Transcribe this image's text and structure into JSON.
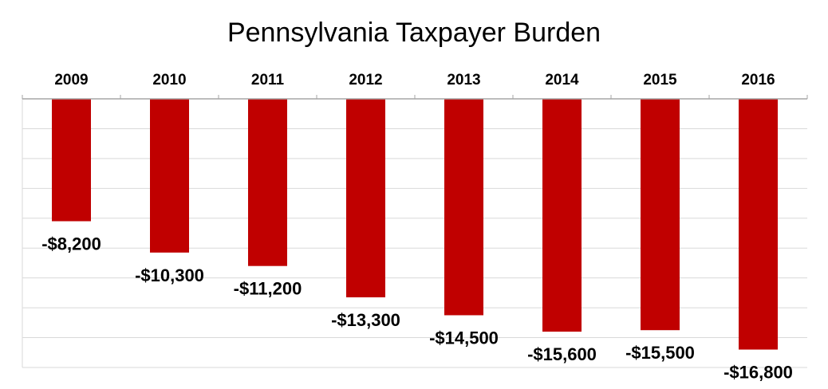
{
  "chart_data": {
    "type": "bar",
    "title": "Pennsylvania Taxpayer Burden",
    "categories": [
      "2009",
      "2010",
      "2011",
      "2012",
      "2013",
      "2014",
      "2015",
      "2016"
    ],
    "values": [
      -8200,
      -10300,
      -11200,
      -13300,
      -14500,
      -15600,
      -15500,
      -16800
    ],
    "data_labels": [
      "-$8,200",
      "-$10,300",
      "-$11,200",
      "-$13,300",
      "-$14,500",
      "-$15,600",
      "-$15,500",
      "-$16,800"
    ],
    "ylim": [
      -18000,
      0
    ],
    "grid": true,
    "bar_color": "#c00000",
    "category_axis_position": "top"
  }
}
